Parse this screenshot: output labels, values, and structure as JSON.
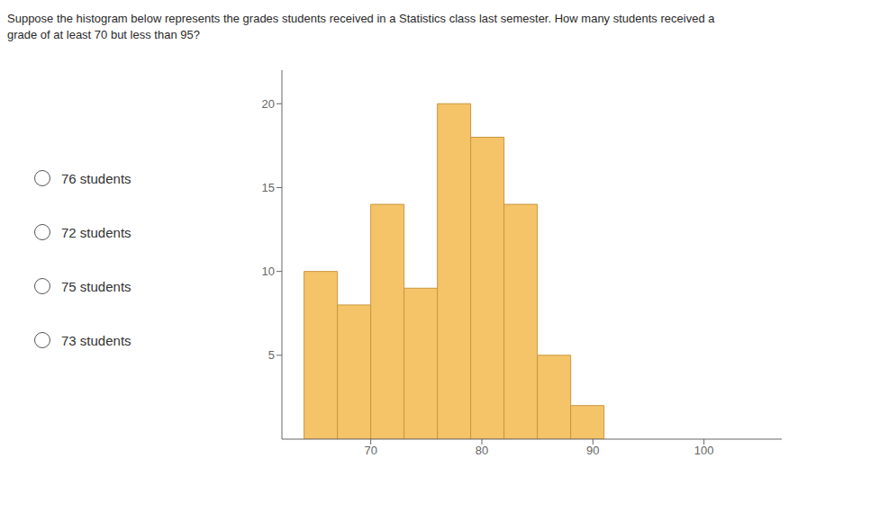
{
  "chart_data": {
    "type": "histogram",
    "title": "Suppose the histogram below represents the grades students received in a Statistics class last semester. How many students received a",
    "subtitle": "grade of at least 70 but less than 95?",
    "bins": [
      64,
      67,
      70,
      73,
      76,
      79,
      82,
      85,
      88,
      91
    ],
    "counts": [
      10,
      8,
      14,
      9,
      20,
      18,
      14,
      5,
      2
    ],
    "color": "#F5C469",
    "xlim": [
      62,
      107
    ],
    "xticks": [
      70,
      80,
      90,
      100
    ],
    "ylim": [
      0,
      22
    ],
    "yticks": [
      5,
      10,
      15,
      20
    ],
    "grid": false,
    "annotations": [
      "76 students",
      "72 students",
      "75 students",
      "73 students"
    ]
  }
}
